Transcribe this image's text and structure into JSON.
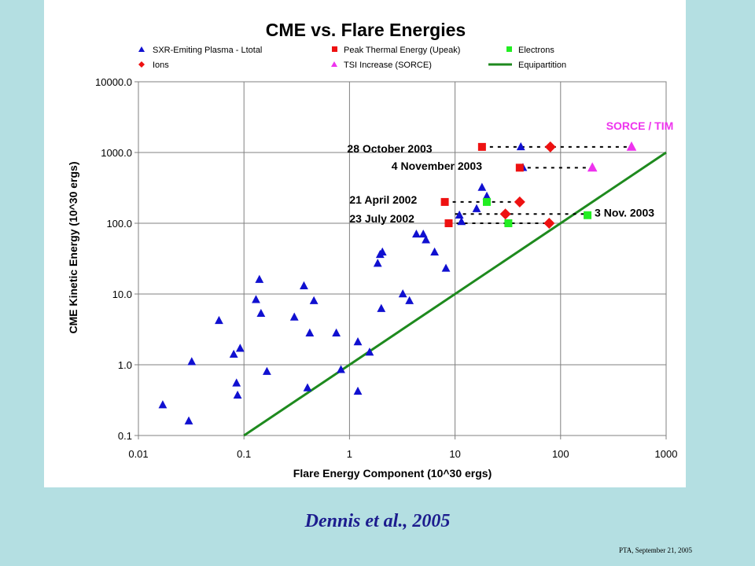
{
  "caption": "Dennis et al., 2005",
  "footer": "PTA, September 21, 2005",
  "colors": {
    "background": "#b4dfe2",
    "sxr": "#1010d0",
    "thermal": "#ee1111",
    "electrons": "#22ee22",
    "ions": "#ee1111",
    "tsi": "#ee33ee",
    "equipartition": "#1e8a1e",
    "caption": "#1c1c8e"
  },
  "chart_data": {
    "type": "scatter",
    "title": "CME vs. Flare Energies",
    "xlabel": "Flare Energy Component (10^30 ergs)",
    "ylabel": "CME Kinetic Energy (10^30 ergs)",
    "x_scale": "log",
    "y_scale": "log",
    "xlim": [
      0.01,
      1000
    ],
    "ylim": [
      0.1,
      10000
    ],
    "x_ticks": [
      "0.01",
      "0.1",
      "1",
      "10",
      "100",
      "1000"
    ],
    "y_ticks": [
      "0.1",
      "1.0",
      "10.0",
      "100.0",
      "1000.0",
      "10000.0"
    ],
    "grid": true,
    "legend": [
      {
        "label": "SXR-Emiting Plasma - Ltotal",
        "series": "sxr"
      },
      {
        "label": "Peak Thermal Energy (Upeak)",
        "series": "thermal"
      },
      {
        "label": "Electrons",
        "series": "electrons"
      },
      {
        "label": "Ions",
        "series": "ions"
      },
      {
        "label": "TSI Increase (SORCE)",
        "series": "tsi"
      },
      {
        "label": "Equipartition",
        "series": "equipartition"
      }
    ],
    "series": {
      "sxr": {
        "name": "SXR-Emiting Plasma - Ltotal",
        "marker": "triangle",
        "points": [
          [
            0.017,
            0.27
          ],
          [
            0.03,
            0.16
          ],
          [
            0.032,
            1.1
          ],
          [
            0.058,
            4.2
          ],
          [
            0.08,
            1.4
          ],
          [
            0.085,
            0.55
          ],
          [
            0.087,
            0.37
          ],
          [
            0.092,
            1.7
          ],
          [
            0.13,
            8.3
          ],
          [
            0.14,
            16
          ],
          [
            0.145,
            5.3
          ],
          [
            0.165,
            0.8
          ],
          [
            0.3,
            4.7
          ],
          [
            0.37,
            13
          ],
          [
            0.4,
            0.47
          ],
          [
            0.42,
            2.8
          ],
          [
            0.46,
            8
          ],
          [
            0.75,
            2.8
          ],
          [
            0.83,
            0.85
          ],
          [
            1.2,
            2.1
          ],
          [
            1.2,
            0.42
          ],
          [
            1.55,
            1.5
          ],
          [
            1.85,
            27
          ],
          [
            1.95,
            36
          ],
          [
            2.05,
            39
          ],
          [
            2.0,
            6.2
          ],
          [
            3.2,
            10
          ],
          [
            3.7,
            8
          ],
          [
            4.3,
            70
          ],
          [
            5.0,
            70
          ],
          [
            5.3,
            58
          ],
          [
            6.4,
            39
          ],
          [
            8.2,
            23
          ],
          [
            11,
            130
          ],
          [
            11.5,
            105
          ],
          [
            16,
            160
          ],
          [
            18,
            320
          ],
          [
            20,
            240
          ],
          [
            42,
            1200
          ],
          [
            44,
            610
          ]
        ]
      },
      "thermal": {
        "name": "Peak Thermal Energy (Upeak)",
        "marker": "square",
        "points": [
          [
            18,
            1200
          ],
          [
            41,
            610
          ],
          [
            8,
            200
          ],
          [
            8.7,
            100
          ]
        ]
      },
      "electrons": {
        "name": "Electrons",
        "marker": "square",
        "points": [
          [
            20,
            200
          ],
          [
            32,
            100
          ],
          [
            180,
            130
          ]
        ]
      },
      "ions": {
        "name": "Ions",
        "marker": "diamond",
        "points": [
          [
            80,
            1200
          ],
          [
            41,
            200
          ],
          [
            30,
            135
          ],
          [
            78,
            100
          ]
        ]
      },
      "tsi": {
        "name": "TSI Increase (SORCE)",
        "marker": "triangle",
        "points": [
          [
            470,
            1200
          ],
          [
            200,
            610
          ]
        ]
      },
      "equipartition": {
        "name": "Equipartition",
        "line": [
          [
            0.1,
            0.1
          ],
          [
            1000,
            1000
          ]
        ]
      }
    },
    "annotations": [
      {
        "text": "SORCE / TIM",
        "x": 270,
        "y": 2100,
        "color": "#ee33ee"
      },
      {
        "text": "28 October 2003",
        "x": 0.95,
        "y": 1000
      },
      {
        "text": "4 November 2003",
        "x": 2.5,
        "y": 570
      },
      {
        "text": "21 April 2002",
        "x": 1.0,
        "y": 190
      },
      {
        "text": "23 July 2002",
        "x": 1.0,
        "y": 103
      },
      {
        "text": "3 Nov. 2003",
        "x": 210,
        "y": 125
      }
    ],
    "connectors": [
      {
        "from": [
          18,
          1200
        ],
        "to": [
          470,
          1200
        ]
      },
      {
        "from": [
          41,
          610
        ],
        "to": [
          200,
          610
        ]
      },
      {
        "from": [
          8,
          200
        ],
        "to": [
          41,
          200
        ]
      },
      {
        "from": [
          10,
          135
        ],
        "to": [
          180,
          135
        ]
      },
      {
        "from": [
          8.7,
          100
        ],
        "to": [
          78,
          100
        ]
      }
    ]
  }
}
